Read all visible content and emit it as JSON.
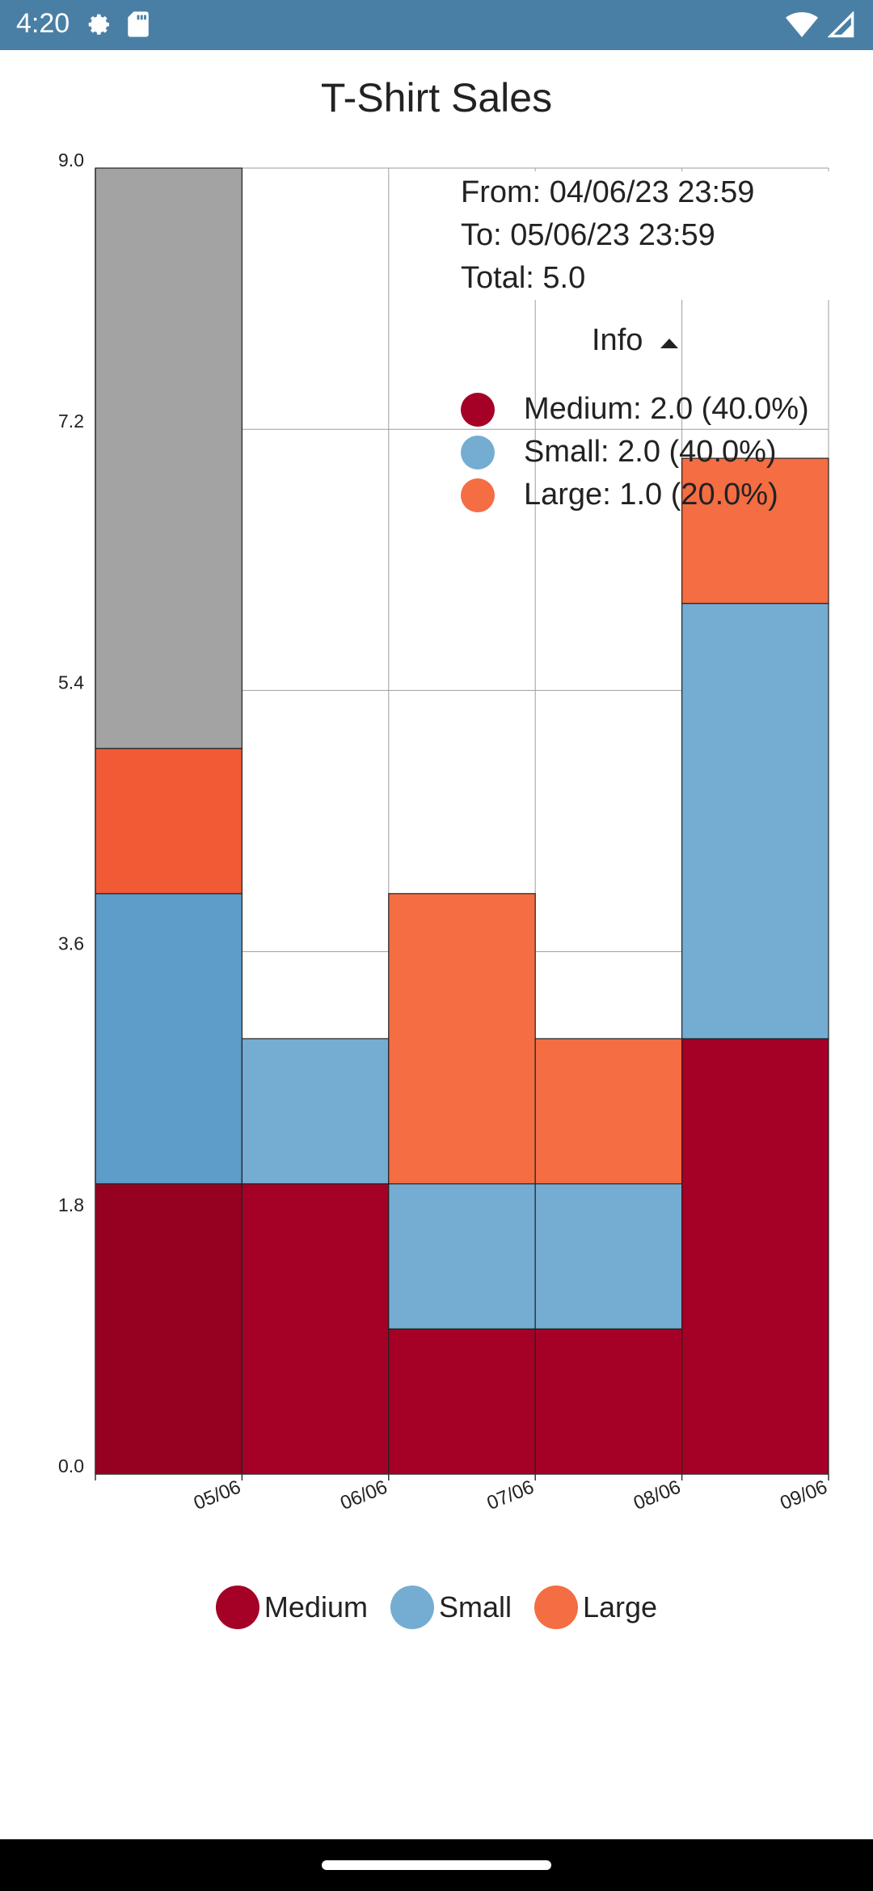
{
  "status_bar": {
    "time": "4:20",
    "left_icons": [
      "gear-icon",
      "sd-card-icon"
    ],
    "right_icons": [
      "wifi-icon",
      "signal-icon"
    ]
  },
  "colors": {
    "medium": "#a50026",
    "small": "#74add1",
    "large": "#f46d43",
    "selected_overlay": "#a3a3a3",
    "status_bar": "#4a7fa5"
  },
  "info": {
    "from": "From: 04/06/23  23:59",
    "to": "To: 05/06/23  23:59",
    "total": "Total: 5.0",
    "toggle_label": "Info",
    "items": [
      {
        "text": "Medium: 2.0 (40.0%)",
        "color": "#a50026"
      },
      {
        "text": "Small: 2.0 (40.0%)",
        "color": "#74add1"
      },
      {
        "text": "Large: 1.0 (20.0%)",
        "color": "#f46d43"
      }
    ]
  },
  "legend": [
    {
      "label": "Medium",
      "color": "#a50026"
    },
    {
      "label": "Small",
      "color": "#74add1"
    },
    {
      "label": "Large",
      "color": "#f46d43"
    }
  ],
  "chart_data": {
    "type": "bar",
    "stacked": true,
    "title": "T-Shirt Sales",
    "x_ticks": [
      "05/06",
      "06/06",
      "07/06",
      "08/06",
      "09/06"
    ],
    "y_ticks": [
      "0.0",
      "1.8",
      "3.6",
      "5.4",
      "7.2",
      "9.0"
    ],
    "ylim": [
      0,
      9.0
    ],
    "grid": true,
    "legend_position": "bottom",
    "selected_bar": 0,
    "series": [
      {
        "name": "Medium",
        "color": "#a50026",
        "values": [
          2,
          2,
          1,
          1,
          3
        ]
      },
      {
        "name": "Small",
        "color": "#74add1",
        "values": [
          2,
          1,
          1,
          1,
          3
        ]
      },
      {
        "name": "Large",
        "color": "#f46d43",
        "values": [
          1,
          0,
          2,
          1,
          1
        ]
      }
    ]
  }
}
